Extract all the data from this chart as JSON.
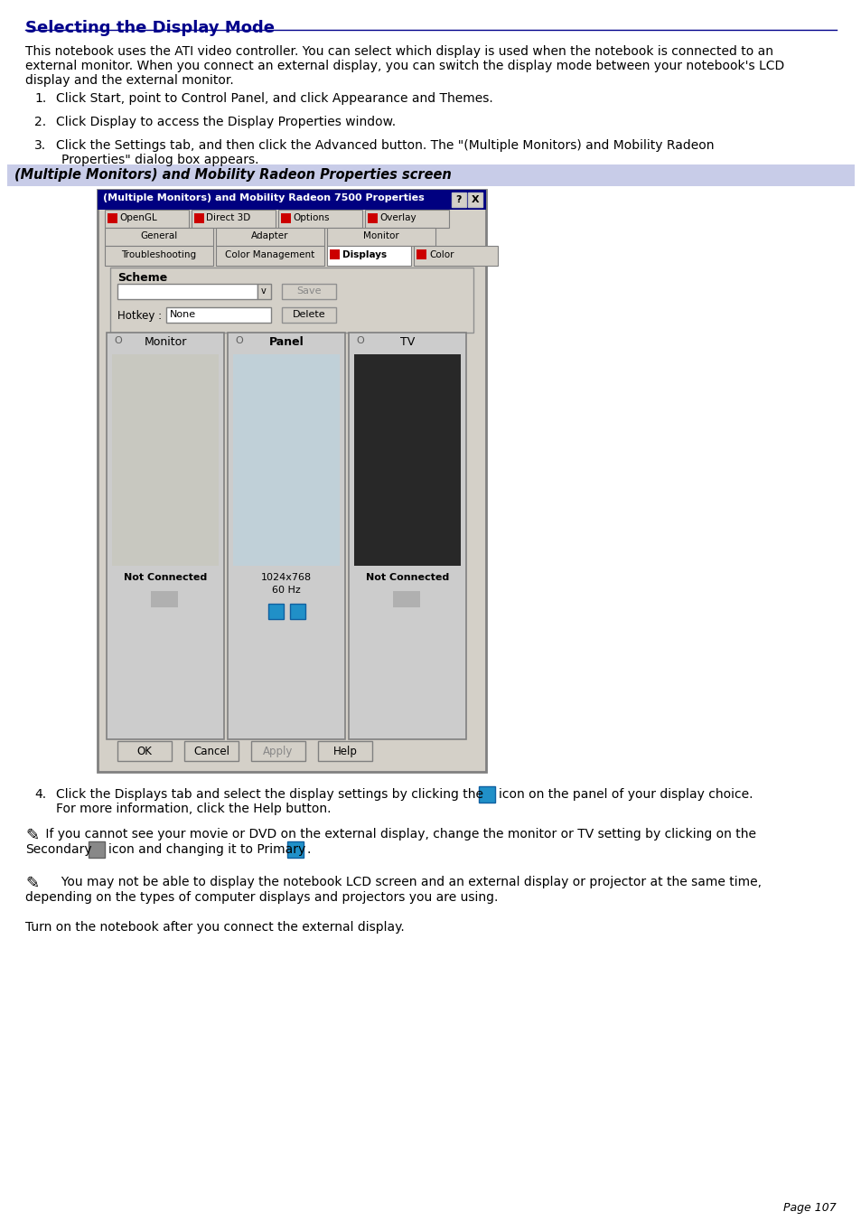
{
  "title": "Selecting the Display Mode",
  "title_color": "#00008B",
  "title_underline_color": "#00008B",
  "bg_color": "#FFFFFF",
  "body_font_color": "#000000",
  "intro_lines": [
    "This notebook uses the ATI video controller. You can select which display is used when the notebook is connected to an",
    "external monitor. When you connect an external display, you can switch the display mode between your notebook's LCD",
    "display and the external monitor."
  ],
  "step1": "Click Start, point to Control Panel, and click Appearance and Themes.",
  "step2": "Click Display to access the Display Properties window.",
  "step3_line1": "Click the Settings tab, and then click the Advanced button. The \"(Multiple Monitors) and Mobility Radeon",
  "step3_line2": "Properties\" dialog box appears.",
  "callout_text": "(Multiple Monitors) and Mobility Radeon Properties screen",
  "callout_bg": "#C8CCE8",
  "footer_text": "Turn on the notebook after you connect the external display.",
  "page_num": "Page 107",
  "dialog_title": "(Multiple Monitors) and Mobility Radeon 7500 Properties",
  "tab_row1": [
    "OpenGL",
    "Direct 3D",
    "Options",
    "Overlay"
  ],
  "tab_row2": [
    "General",
    "Adapter",
    "Monitor"
  ],
  "tab_row3": [
    "Troubleshooting",
    "Color Management",
    "Displays",
    "Color"
  ],
  "scheme_label": "Scheme",
  "hotkey_label": "Hotkey :",
  "hotkey_value": "None",
  "panel_labels": [
    "Monitor",
    "Panel",
    "TV"
  ],
  "panel_status": [
    "Not Connected",
    "1024x768\n60 Hz",
    "Not Connected"
  ],
  "button_labels": [
    "OK",
    "Cancel",
    "Apply",
    "Help"
  ],
  "step4_pre": "Click the Displays tab and select the display settings by clicking the",
  "step4_post": "icon on the panel of your display choice.",
  "step4_line2": "For more information, click the Help button.",
  "note1_pre": " If you cannot see your movie or DVD on the external display, change the monitor or TV setting by clicking on the",
  "note1_line2_pre": "Secondary",
  "note1_line2_mid": "icon and changing it to Primary",
  "note2_line1": "     You may not be able to display the notebook LCD screen and an external display or projector at the same time,",
  "note2_line2": "depending on the types of computer displays and projectors you are using."
}
